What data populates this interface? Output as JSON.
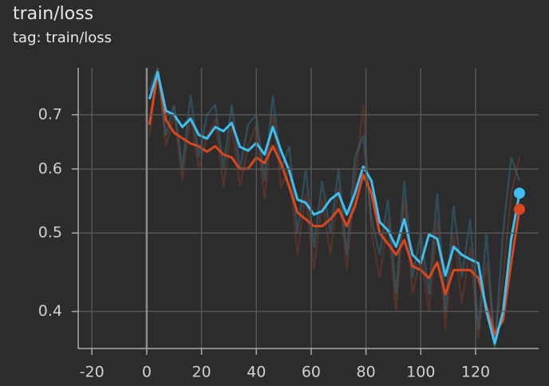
{
  "chart_data": {
    "type": "line",
    "title": "train/loss",
    "subtitle": "tag: train/loss",
    "x": [
      1,
      4,
      7,
      10,
      13,
      16,
      19,
      22,
      25,
      28,
      31,
      34,
      37,
      40,
      43,
      46,
      49,
      52,
      55,
      58,
      61,
      64,
      67,
      70,
      73,
      76,
      79,
      82,
      85,
      88,
      91,
      94,
      97,
      100,
      103,
      106,
      109,
      112,
      115,
      118,
      121,
      124,
      127,
      130,
      133,
      136
    ],
    "raw_series": [
      {
        "color": "#d9471e",
        "values": [
          0.66,
          0.8,
          0.64,
          0.7,
          0.58,
          0.7,
          0.6,
          0.66,
          0.69,
          0.57,
          0.68,
          0.57,
          0.64,
          0.68,
          0.55,
          0.7,
          0.57,
          0.6,
          0.47,
          0.56,
          0.45,
          0.55,
          0.47,
          0.57,
          0.45,
          0.58,
          0.72,
          0.5,
          0.44,
          0.52,
          0.4,
          0.55,
          0.42,
          0.47,
          0.4,
          0.52,
          0.38,
          0.5,
          0.41,
          0.48,
          0.37,
          0.46,
          0.37,
          0.44,
          0.56,
          0.62
        ]
      },
      {
        "color": "#3ebff0",
        "values": [
          0.75,
          0.8,
          0.66,
          0.72,
          0.6,
          0.74,
          0.62,
          0.7,
          0.72,
          0.6,
          0.72,
          0.6,
          0.68,
          0.7,
          0.58,
          0.74,
          0.6,
          0.64,
          0.5,
          0.6,
          0.48,
          0.58,
          0.5,
          0.6,
          0.47,
          0.62,
          0.66,
          0.52,
          0.47,
          0.55,
          0.42,
          0.58,
          0.44,
          0.5,
          0.42,
          0.56,
          0.4,
          0.54,
          0.44,
          0.52,
          0.38,
          0.5,
          0.36,
          0.5,
          0.62,
          0.58
        ]
      }
    ],
    "raw_opacity": 0.22,
    "series": [
      {
        "color": "#d9471e",
        "values": [
          0.68,
          0.79,
          0.69,
          0.665,
          0.655,
          0.645,
          0.64,
          0.63,
          0.64,
          0.625,
          0.62,
          0.6,
          0.6,
          0.62,
          0.61,
          0.64,
          0.61,
          0.57,
          0.53,
          0.52,
          0.51,
          0.51,
          0.52,
          0.535,
          0.51,
          0.54,
          0.59,
          0.56,
          0.5,
          0.485,
          0.47,
          0.49,
          0.455,
          0.45,
          0.44,
          0.46,
          0.42,
          0.45,
          0.45,
          0.45,
          0.44,
          0.405,
          0.375,
          0.39,
          0.46,
          0.535
        ]
      },
      {
        "color": "#3ebff0",
        "values": [
          0.732,
          0.79,
          0.708,
          0.7,
          0.676,
          0.692,
          0.661,
          0.654,
          0.676,
          0.668,
          0.684,
          0.639,
          0.632,
          0.646,
          0.625,
          0.676,
          0.632,
          0.597,
          0.55,
          0.545,
          0.527,
          0.532,
          0.55,
          0.56,
          0.527,
          0.56,
          0.604,
          0.58,
          0.516,
          0.504,
          0.481,
          0.52,
          0.47,
          0.459,
          0.498,
          0.492,
          0.443,
          0.481,
          0.47,
          0.464,
          0.459,
          0.4,
          0.365,
          0.4,
          0.492,
          0.56
        ]
      }
    ],
    "xlim": [
      -25,
      143
    ],
    "xticks": [
      -20,
      0,
      20,
      40,
      60,
      80,
      100,
      120
    ],
    "ylim": [
      0.36,
      0.8
    ],
    "yticks": [
      0.4,
      0.5,
      0.6,
      0.7
    ],
    "yscale": "log",
    "grid": true
  }
}
